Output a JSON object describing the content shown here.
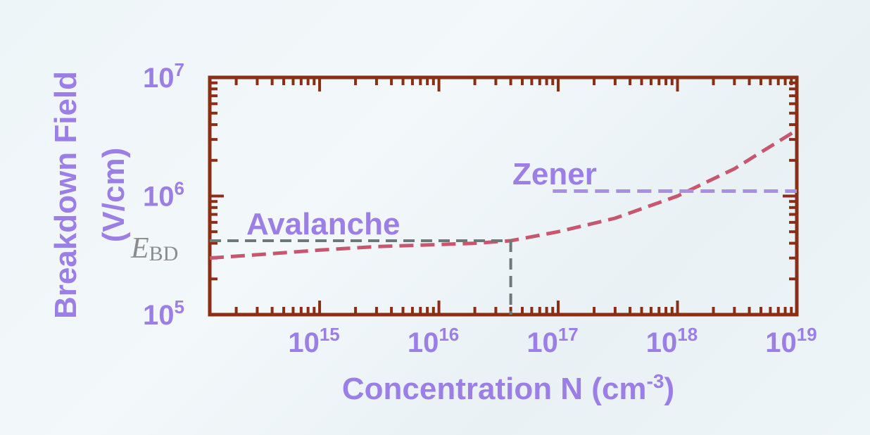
{
  "chart_data": {
    "type": "line",
    "title": "",
    "xlabel": "Concentration N (cm",
    "xlabel_superscript": "-3",
    "xlabel_suffix": ")",
    "ylabel_line1": "Breakdown Field",
    "ylabel_line2": "(V/cm)",
    "x_scale": "log",
    "y_scale": "log",
    "xlim": [
      120000000000000.0,
      1e+19
    ],
    "ylim": [
      100000.0,
      10000000.0
    ],
    "x_ticks": [
      {
        "base": "10",
        "exp": "15",
        "value": 1000000000000000.0
      },
      {
        "base": "10",
        "exp": "16",
        "value": 1e+16
      },
      {
        "base": "10",
        "exp": "17",
        "value": 1e+17
      },
      {
        "base": "10",
        "exp": "18",
        "value": 1e+18
      },
      {
        "base": "10",
        "exp": "19",
        "value": 1e+19
      }
    ],
    "y_ticks": [
      {
        "base": "10",
        "exp": "5",
        "value": 100000.0
      },
      {
        "base": "10",
        "exp": "6",
        "value": 1000000.0
      },
      {
        "base": "10",
        "exp": "7",
        "value": 10000000.0
      }
    ],
    "series": [
      {
        "name": "",
        "style": "dashed",
        "color": "#c8566e",
        "points": [
          [
            120000000000000.0,
            300000.0
          ],
          [
            300000000000000.0,
            320000.0
          ],
          [
            1000000000000000.0,
            350000.0
          ],
          [
            3000000000000000.0,
            375000.0
          ],
          [
            1e+16,
            390000.0
          ],
          [
            2e+16,
            400000.0
          ],
          [
            4e+16,
            420000.0
          ],
          [
            1e+17,
            500000.0
          ],
          [
            3e+17,
            650000.0
          ],
          [
            1e+18,
            1000000.0
          ],
          [
            3e+18,
            1700000.0
          ],
          [
            1e+19,
            3600000.0
          ]
        ]
      },
      {
        "name": "Zener",
        "style": "dashed",
        "color": "#a98ee8",
        "points": [
          [
            9e+16,
            1100000.0
          ],
          [
            1e+19,
            1100000.0
          ]
        ]
      }
    ],
    "annotations": {
      "avalanche_label": "Avalanche",
      "zener_label": "Zener",
      "ebd_symbol": "E",
      "ebd_subscript": "BD",
      "ebd_value": 420000.0,
      "ebd_concentration": 4e+16
    },
    "grid": false,
    "legend": "none"
  },
  "colors": {
    "frame": "#8b2e16",
    "label_purple": "#9b7ee6",
    "avalanche_curve": "#c8566e",
    "zener_line": "#a98ee8",
    "guide_line": "#6b7a78",
    "ebd_text": "#8c8c8c"
  }
}
